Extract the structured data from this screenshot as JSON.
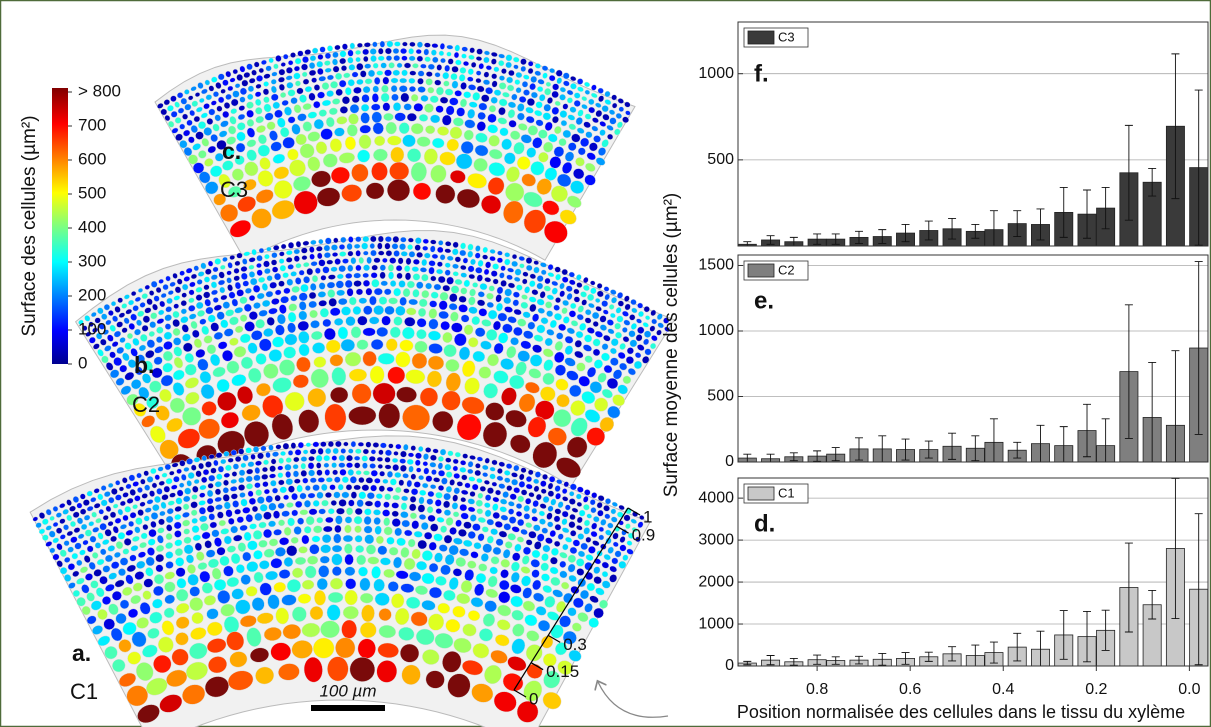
{
  "left": {
    "colorbar": {
      "label": "Surface des cellules (µm²)",
      "lim": [
        0,
        800
      ],
      "ticks": [
        0,
        100,
        200,
        300,
        400,
        500,
        600,
        700,
        {
          "value": 800,
          "label": "> 800"
        }
      ]
    },
    "panels": [
      {
        "letter": "c.",
        "name": "C3"
      },
      {
        "letter": "b.",
        "name": "C2"
      },
      {
        "letter": "a.",
        "name": "C1"
      }
    ],
    "scale_bar": "100 µm",
    "position_axis": {
      "lim": [
        0,
        1
      ],
      "ticks": [
        0,
        0.15,
        0.3,
        0.9,
        1
      ]
    }
  },
  "chart_data": [
    {
      "type": "bar",
      "panel_label": "f.",
      "x": [
        0.95,
        0.9,
        0.85,
        0.8,
        0.76,
        0.71,
        0.66,
        0.61,
        0.56,
        0.51,
        0.46,
        0.42,
        0.37,
        0.32,
        0.27,
        0.22,
        0.18,
        0.13,
        0.08,
        0.03,
        -0.02
      ],
      "series": [
        {
          "name": "C3",
          "color": "#3a3a3a",
          "values": [
            10,
            35,
            25,
            40,
            40,
            50,
            55,
            75,
            90,
            100,
            85,
            95,
            130,
            125,
            195,
            185,
            220,
            425,
            370,
            695,
            455
          ],
          "errors": [
            15,
            25,
            25,
            30,
            30,
            35,
            40,
            50,
            55,
            60,
            40,
            110,
            75,
            90,
            145,
            140,
            120,
            275,
            80,
            420,
            450
          ]
        }
      ],
      "xlim": [
        0.97,
        -0.04
      ],
      "ylim": [
        0,
        1300
      ],
      "yticks": [
        500,
        1000
      ],
      "grid": true
    },
    {
      "type": "bar",
      "panel_label": "e.",
      "ylabel": "Surface moyenne des cellules (µm²)",
      "x": [
        0.95,
        0.9,
        0.85,
        0.8,
        0.76,
        0.71,
        0.66,
        0.61,
        0.56,
        0.51,
        0.46,
        0.42,
        0.37,
        0.32,
        0.27,
        0.22,
        0.18,
        0.13,
        0.08,
        0.03,
        -0.02
      ],
      "series": [
        {
          "name": "C2",
          "color": "#7f7f7f",
          "values": [
            30,
            25,
            40,
            45,
            60,
            100,
            100,
            95,
            95,
            120,
            105,
            150,
            90,
            140,
            125,
            240,
            125,
            690,
            340,
            280,
            870
          ],
          "errors": [
            30,
            35,
            30,
            40,
            50,
            85,
            100,
            80,
            65,
            100,
            95,
            180,
            60,
            140,
            145,
            200,
            205,
            510,
            420,
            570,
            660
          ]
        }
      ],
      "xlim": [
        0.97,
        -0.04
      ],
      "ylim": [
        0,
        1580
      ],
      "yticks": [
        0,
        500,
        1000,
        1500
      ],
      "grid": true
    },
    {
      "type": "bar",
      "panel_label": "d.",
      "xlabel": "Position normalisée des cellules dans le tissu du xylème",
      "x": [
        0.95,
        0.9,
        0.85,
        0.8,
        0.76,
        0.71,
        0.66,
        0.61,
        0.56,
        0.51,
        0.46,
        0.42,
        0.37,
        0.32,
        0.27,
        0.22,
        0.18,
        0.13,
        0.08,
        0.03,
        -0.02
      ],
      "series": [
        {
          "name": "C1",
          "color": "#c8c8c8",
          "values": [
            70,
            140,
            100,
            150,
            130,
            140,
            160,
            180,
            220,
            290,
            250,
            320,
            450,
            400,
            740,
            700,
            850,
            1870,
            1460,
            2800,
            1830
          ],
          "errors": [
            40,
            110,
            80,
            110,
            90,
            90,
            140,
            140,
            110,
            170,
            250,
            250,
            330,
            430,
            580,
            600,
            480,
            1060,
            340,
            1670,
            1800
          ]
        }
      ],
      "xlim": [
        0.97,
        -0.04
      ],
      "ylim": [
        0,
        4480
      ],
      "yticks": [
        0,
        1000,
        2000,
        3000,
        4000
      ],
      "xticks": [
        0.8,
        0.6,
        0.4,
        0.2,
        {
          "value": 0,
          "label": "0.0"
        }
      ],
      "grid": true
    }
  ]
}
